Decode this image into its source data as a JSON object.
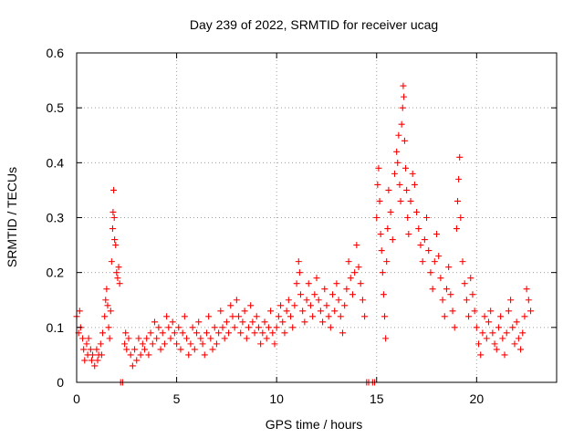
{
  "chart_data": {
    "type": "scatter",
    "title": "Day 239 of 2022, SRMTID for receiver ucag",
    "xlabel": "GPS time / hours",
    "ylabel": "SRMTID / TECUs",
    "xlim": [
      0,
      24
    ],
    "ylim": [
      0,
      0.6
    ],
    "xticks": [
      0,
      5,
      10,
      15,
      20
    ],
    "xtick_labels": [
      "0",
      "5",
      "10",
      "15",
      "20"
    ],
    "yticks": [
      0,
      0.1,
      0.2,
      0.3,
      0.4,
      0.5,
      0.6
    ],
    "ytick_labels": [
      "0",
      "0.1",
      "0.2",
      "0.3",
      "0.4",
      "0.5",
      "0.6"
    ],
    "grid": true,
    "marker": "+",
    "color": "#ff0000",
    "series": [
      {
        "name": "SRMTID",
        "points": [
          [
            0.0,
            0.12
          ],
          [
            0.1,
            0.09
          ],
          [
            0.15,
            0.13
          ],
          [
            0.2,
            0.1
          ],
          [
            0.3,
            0.08
          ],
          [
            0.35,
            0.06
          ],
          [
            0.4,
            0.04
          ],
          [
            0.5,
            0.07
          ],
          [
            0.55,
            0.05
          ],
          [
            0.6,
            0.08
          ],
          [
            0.7,
            0.06
          ],
          [
            0.75,
            0.04
          ],
          [
            0.8,
            0.05
          ],
          [
            0.9,
            0.03
          ],
          [
            1.0,
            0.06
          ],
          [
            1.05,
            0.04
          ],
          [
            1.1,
            0.05
          ],
          [
            1.2,
            0.07
          ],
          [
            1.25,
            0.05
          ],
          [
            1.3,
            0.09
          ],
          [
            1.4,
            0.12
          ],
          [
            1.45,
            0.15
          ],
          [
            1.5,
            0.17
          ],
          [
            1.55,
            0.14
          ],
          [
            1.6,
            0.1
          ],
          [
            1.65,
            0.08
          ],
          [
            1.7,
            0.13
          ],
          [
            1.75,
            0.22
          ],
          [
            1.8,
            0.28
          ],
          [
            1.82,
            0.31
          ],
          [
            1.85,
            0.35
          ],
          [
            1.88,
            0.3
          ],
          [
            1.9,
            0.26
          ],
          [
            1.95,
            0.25
          ],
          [
            2.0,
            0.2
          ],
          [
            2.05,
            0.19
          ],
          [
            2.1,
            0.21
          ],
          [
            2.15,
            0.18
          ],
          [
            2.2,
            0.0
          ],
          [
            2.3,
            0.0
          ],
          [
            2.4,
            0.07
          ],
          [
            2.45,
            0.09
          ],
          [
            2.5,
            0.06
          ],
          [
            2.6,
            0.08
          ],
          [
            2.7,
            0.05
          ],
          [
            2.8,
            0.03
          ],
          [
            2.9,
            0.06
          ],
          [
            3.0,
            0.04
          ],
          [
            3.1,
            0.08
          ],
          [
            3.2,
            0.05
          ],
          [
            3.3,
            0.07
          ],
          [
            3.4,
            0.06
          ],
          [
            3.5,
            0.08
          ],
          [
            3.6,
            0.05
          ],
          [
            3.7,
            0.09
          ],
          [
            3.8,
            0.07
          ],
          [
            3.9,
            0.11
          ],
          [
            4.0,
            0.08
          ],
          [
            4.1,
            0.1
          ],
          [
            4.2,
            0.06
          ],
          [
            4.3,
            0.09
          ],
          [
            4.4,
            0.07
          ],
          [
            4.5,
            0.12
          ],
          [
            4.6,
            0.1
          ],
          [
            4.7,
            0.08
          ],
          [
            4.8,
            0.11
          ],
          [
            4.9,
            0.09
          ],
          [
            5.0,
            0.07
          ],
          [
            5.1,
            0.1
          ],
          [
            5.2,
            0.06
          ],
          [
            5.3,
            0.09
          ],
          [
            5.4,
            0.12
          ],
          [
            5.5,
            0.08
          ],
          [
            5.6,
            0.05
          ],
          [
            5.7,
            0.07
          ],
          [
            5.8,
            0.1
          ],
          [
            5.9,
            0.06
          ],
          [
            6.0,
            0.09
          ],
          [
            6.1,
            0.11
          ],
          [
            6.2,
            0.08
          ],
          [
            6.3,
            0.07
          ],
          [
            6.4,
            0.05
          ],
          [
            6.5,
            0.09
          ],
          [
            6.6,
            0.12
          ],
          [
            6.7,
            0.08
          ],
          [
            6.8,
            0.06
          ],
          [
            6.9,
            0.1
          ],
          [
            7.0,
            0.07
          ],
          [
            7.1,
            0.09
          ],
          [
            7.2,
            0.13
          ],
          [
            7.3,
            0.1
          ],
          [
            7.4,
            0.08
          ],
          [
            7.5,
            0.11
          ],
          [
            7.6,
            0.09
          ],
          [
            7.7,
            0.14
          ],
          [
            7.8,
            0.12
          ],
          [
            7.9,
            0.1
          ],
          [
            8.0,
            0.15
          ],
          [
            8.1,
            0.12
          ],
          [
            8.2,
            0.09
          ],
          [
            8.3,
            0.11
          ],
          [
            8.4,
            0.13
          ],
          [
            8.5,
            0.08
          ],
          [
            8.6,
            0.1
          ],
          [
            8.7,
            0.14
          ],
          [
            8.8,
            0.11
          ],
          [
            8.9,
            0.09
          ],
          [
            9.0,
            0.12
          ],
          [
            9.1,
            0.1
          ],
          [
            9.2,
            0.07
          ],
          [
            9.3,
            0.09
          ],
          [
            9.4,
            0.11
          ],
          [
            9.5,
            0.08
          ],
          [
            9.6,
            0.1
          ],
          [
            9.7,
            0.13
          ],
          [
            9.8,
            0.09
          ],
          [
            9.9,
            0.07
          ],
          [
            10.0,
            0.1
          ],
          [
            10.1,
            0.12
          ],
          [
            10.2,
            0.14
          ],
          [
            10.3,
            0.11
          ],
          [
            10.4,
            0.09
          ],
          [
            10.5,
            0.13
          ],
          [
            10.6,
            0.15
          ],
          [
            10.7,
            0.12
          ],
          [
            10.8,
            0.1
          ],
          [
            10.9,
            0.14
          ],
          [
            11.0,
            0.18
          ],
          [
            11.1,
            0.22
          ],
          [
            11.15,
            0.2
          ],
          [
            11.2,
            0.16
          ],
          [
            11.3,
            0.13
          ],
          [
            11.4,
            0.11
          ],
          [
            11.5,
            0.15
          ],
          [
            11.6,
            0.18
          ],
          [
            11.7,
            0.14
          ],
          [
            11.8,
            0.12
          ],
          [
            11.9,
            0.16
          ],
          [
            12.0,
            0.19
          ],
          [
            12.1,
            0.15
          ],
          [
            12.2,
            0.13
          ],
          [
            12.3,
            0.11
          ],
          [
            12.4,
            0.17
          ],
          [
            12.5,
            0.14
          ],
          [
            12.6,
            0.12
          ],
          [
            12.7,
            0.1
          ],
          [
            12.8,
            0.16
          ],
          [
            12.9,
            0.13
          ],
          [
            13.0,
            0.18
          ],
          [
            13.1,
            0.15
          ],
          [
            13.2,
            0.12
          ],
          [
            13.3,
            0.09
          ],
          [
            13.4,
            0.14
          ],
          [
            13.5,
            0.17
          ],
          [
            13.6,
            0.22
          ],
          [
            13.7,
            0.19
          ],
          [
            13.8,
            0.16
          ],
          [
            13.9,
            0.2
          ],
          [
            14.0,
            0.25
          ],
          [
            14.1,
            0.21
          ],
          [
            14.2,
            0.18
          ],
          [
            14.3,
            0.15
          ],
          [
            14.4,
            0.12
          ],
          [
            14.5,
            0.0
          ],
          [
            14.6,
            0.0
          ],
          [
            14.8,
            0.0
          ],
          [
            14.9,
            0.0
          ],
          [
            15.0,
            0.3
          ],
          [
            15.05,
            0.36
          ],
          [
            15.1,
            0.39
          ],
          [
            15.15,
            0.33
          ],
          [
            15.2,
            0.27
          ],
          [
            15.25,
            0.24
          ],
          [
            15.3,
            0.2
          ],
          [
            15.35,
            0.16
          ],
          [
            15.4,
            0.12
          ],
          [
            15.45,
            0.08
          ],
          [
            15.5,
            0.22
          ],
          [
            15.55,
            0.28
          ],
          [
            15.6,
            0.35
          ],
          [
            15.7,
            0.31
          ],
          [
            15.8,
            0.26
          ],
          [
            15.9,
            0.38
          ],
          [
            16.0,
            0.42
          ],
          [
            16.05,
            0.4
          ],
          [
            16.1,
            0.45
          ],
          [
            16.15,
            0.36
          ],
          [
            16.2,
            0.33
          ],
          [
            16.25,
            0.47
          ],
          [
            16.3,
            0.5
          ],
          [
            16.33,
            0.54
          ],
          [
            16.36,
            0.52
          ],
          [
            16.4,
            0.44
          ],
          [
            16.45,
            0.39
          ],
          [
            16.5,
            0.35
          ],
          [
            16.55,
            0.3
          ],
          [
            16.6,
            0.27
          ],
          [
            16.7,
            0.33
          ],
          [
            16.8,
            0.38
          ],
          [
            16.9,
            0.36
          ],
          [
            17.0,
            0.31
          ],
          [
            17.1,
            0.28
          ],
          [
            17.2,
            0.25
          ],
          [
            17.3,
            0.22
          ],
          [
            17.4,
            0.26
          ],
          [
            17.5,
            0.3
          ],
          [
            17.6,
            0.24
          ],
          [
            17.7,
            0.2
          ],
          [
            17.8,
            0.17
          ],
          [
            17.9,
            0.22
          ],
          [
            18.0,
            0.27
          ],
          [
            18.1,
            0.23
          ],
          [
            18.2,
            0.19
          ],
          [
            18.3,
            0.15
          ],
          [
            18.4,
            0.12
          ],
          [
            18.5,
            0.17
          ],
          [
            18.6,
            0.21
          ],
          [
            18.7,
            0.16
          ],
          [
            18.8,
            0.13
          ],
          [
            18.9,
            0.1
          ],
          [
            19.0,
            0.28
          ],
          [
            19.05,
            0.33
          ],
          [
            19.1,
            0.37
          ],
          [
            19.15,
            0.41
          ],
          [
            19.2,
            0.3
          ],
          [
            19.3,
            0.22
          ],
          [
            19.4,
            0.18
          ],
          [
            19.5,
            0.15
          ],
          [
            19.6,
            0.12
          ],
          [
            19.7,
            0.19
          ],
          [
            19.8,
            0.16
          ],
          [
            19.9,
            0.13
          ],
          [
            20.0,
            0.1
          ],
          [
            20.1,
            0.07
          ],
          [
            20.2,
            0.05
          ],
          [
            20.3,
            0.09
          ],
          [
            20.4,
            0.12
          ],
          [
            20.5,
            0.08
          ],
          [
            20.6,
            0.11
          ],
          [
            20.7,
            0.13
          ],
          [
            20.8,
            0.09
          ],
          [
            20.9,
            0.07
          ],
          [
            21.0,
            0.06
          ],
          [
            21.1,
            0.1
          ],
          [
            21.2,
            0.12
          ],
          [
            21.3,
            0.08
          ],
          [
            21.4,
            0.05
          ],
          [
            21.5,
            0.09
          ],
          [
            21.6,
            0.13
          ],
          [
            21.7,
            0.15
          ],
          [
            21.8,
            0.1
          ],
          [
            21.9,
            0.07
          ],
          [
            22.0,
            0.11
          ],
          [
            22.1,
            0.08
          ],
          [
            22.2,
            0.06
          ],
          [
            22.3,
            0.09
          ],
          [
            22.4,
            0.12
          ],
          [
            22.5,
            0.17
          ],
          [
            22.6,
            0.15
          ],
          [
            22.7,
            0.13
          ]
        ]
      }
    ]
  }
}
